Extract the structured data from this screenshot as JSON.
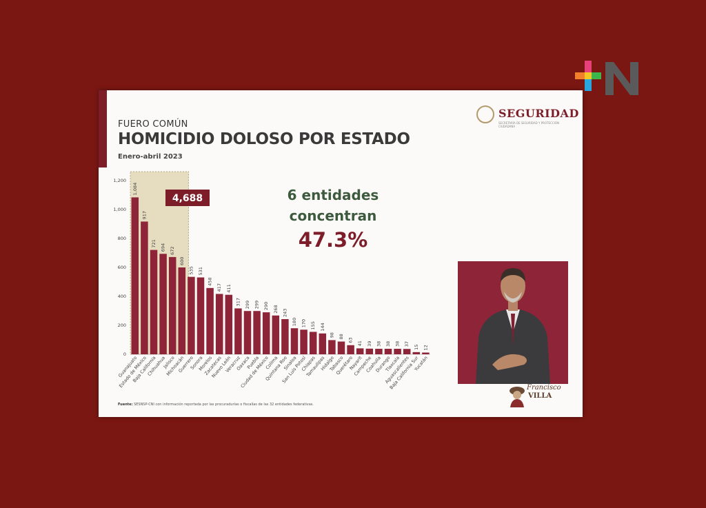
{
  "slide": {
    "kicker": "FUERO COMÚN",
    "title": "HOMICIDIO DOLOSO POR ESTADO",
    "period": "Enero-abril 2023",
    "brand": "SEGURIDAD",
    "brand_subtitle": "SECRETARÍA DE SEGURIDAD Y PROTECCIÓN CIUDADANA",
    "callout_line1": "6 entidades",
    "callout_line2": "concentran",
    "callout_pct": "47.3%",
    "highlight_total": "4,688",
    "source_label": "Fuente:",
    "source_text": "SESNSP-CNI con información reportada por las procuradurías o fiscalías de las 32 entidades federativas.",
    "watermark_line1": "Francisco",
    "watermark_line2": "VILLA"
  },
  "colors": {
    "background": "#7a1712",
    "bar": "#8e2438",
    "highlight": "#e6dcc0",
    "accent_green": "#3d5a3f",
    "accent_wine": "#7e1d2a"
  },
  "chart_data": {
    "type": "bar",
    "title": "HOMICIDIO DOLOSO POR ESTADO",
    "subtitle": "Enero-abril 2023",
    "categories": [
      "Guanajuato",
      "Estado de México",
      "Baja California",
      "Chihuahua",
      "Jalisco",
      "Michoacán",
      "Guerrero",
      "Sonora",
      "Morelos",
      "Zacatecas",
      "Nuevo León",
      "Veracruz",
      "Oaxaca",
      "Puebla",
      "Ciudad de México",
      "Colima",
      "Quintana Roo",
      "Sinaloa",
      "San Luis Potosí",
      "Chiapas",
      "Tamaulipas",
      "Hidalgo",
      "Tabasco",
      "Querétaro",
      "Nayarit",
      "Campeche",
      "Coahuila",
      "Durango",
      "Tlaxcala",
      "Aguascalientes",
      "Baja California Sur",
      "Yucatán"
    ],
    "values": [
      1084,
      917,
      721,
      694,
      672,
      600,
      535,
      531,
      458,
      417,
      411,
      317,
      299,
      299,
      290,
      268,
      243,
      180,
      170,
      155,
      144,
      98,
      88,
      63,
      41,
      39,
      38,
      38,
      38,
      37,
      15,
      12
    ],
    "yticks": [
      "0",
      "200",
      "400",
      "600",
      "800",
      "1,000",
      "1,200"
    ],
    "ylim": [
      0,
      1200
    ],
    "highlight_count": 6,
    "grid": false,
    "legend": "none"
  }
}
